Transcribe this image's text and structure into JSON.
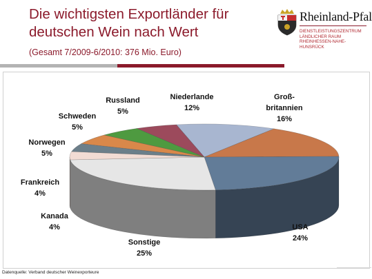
{
  "header": {
    "title_line1": "Die wichtigsten Exportländer für",
    "title_line2": "deutschen Wein nach Wert",
    "subtitle": "(Gesamt 7/2009-6/2010: 376 Mio. Euro)"
  },
  "logo": {
    "wordmark": "Rheinland-Pfalz",
    "subline": "DIENSTLEISTUNGSZENTRUM\nLÄNDLICHER RAUM\nRHEINHESSEN-NAHE-\nHUNSRÜCK"
  },
  "footer": {
    "source": "Datenquelle: Verband deutscher Weinexporteure"
  },
  "colors": {
    "title": "#8b1a2b",
    "divider_grey": "#b3b3b3",
    "divider_red": "#8b1a2b"
  },
  "chart_data": {
    "type": "pie",
    "style": "3d",
    "series": [
      {
        "label_lines": [
          "Niederlande"
        ],
        "value_text": "12%",
        "value": 12,
        "color": "#a8b6d0"
      },
      {
        "label_lines": [
          "Groß-",
          "britannien"
        ],
        "value_text": "16%",
        "value": 16,
        "color": "#c8784a"
      },
      {
        "label_lines": [
          "USA"
        ],
        "value_text": "24%",
        "value": 24,
        "color": "#627c98"
      },
      {
        "label_lines": [
          "Sonstige"
        ],
        "value_text": "25%",
        "value": 25,
        "color": "#e6e6e6"
      },
      {
        "label_lines": [
          "Kanada"
        ],
        "value_text": "4%",
        "value": 4,
        "color": "#f2dcd4"
      },
      {
        "label_lines": [
          "Frankreich"
        ],
        "value_text": "4%",
        "value": 4,
        "color": "#6c7f8a"
      },
      {
        "label_lines": [
          "Norwegen"
        ],
        "value_text": "5%",
        "value": 5,
        "color": "#d9884a"
      },
      {
        "label_lines": [
          "Schweden"
        ],
        "value_text": "5%",
        "value": 5,
        "color": "#4e9a40"
      },
      {
        "label_lines": [
          "Russland"
        ],
        "value_text": "5%",
        "value": 5,
        "color": "#9c4a5c"
      }
    ]
  }
}
